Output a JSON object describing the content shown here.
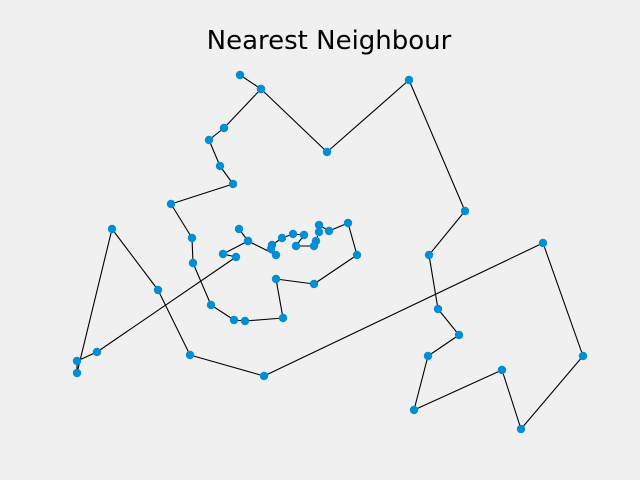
{
  "chart_data": {
    "type": "line",
    "title": "Nearest Neighbour",
    "xlabel": "",
    "ylabel": "",
    "axes_visible": false,
    "grid": false,
    "legend": "none",
    "xlim": [
      48,
      612
    ],
    "ylim": [
      -452,
      -48
    ],
    "colors": {
      "background": "#f0f0f0",
      "line": "#000000",
      "marker": "#008fd5"
    },
    "series": [
      {
        "route": [
          [
            240,
            -75
          ],
          [
            261,
            -89
          ],
          [
            224,
            -128
          ],
          [
            209,
            -140
          ],
          [
            220,
            -166
          ],
          [
            233,
            -184
          ],
          [
            171,
            -204
          ],
          [
            192,
            -238
          ],
          [
            193,
            -263
          ],
          [
            211,
            -305
          ],
          [
            234,
            -320
          ],
          [
            245,
            -321
          ],
          [
            283,
            -318
          ],
          [
            276,
            -279
          ],
          [
            314,
            -284
          ],
          [
            357,
            -255
          ],
          [
            348,
            -223
          ],
          [
            329,
            -231
          ],
          [
            319,
            -225
          ],
          [
            319,
            -232
          ],
          [
            316,
            -241
          ],
          [
            314,
            -246
          ],
          [
            296,
            -246
          ],
          [
            304,
            -235
          ],
          [
            293,
            -234
          ],
          [
            282,
            -238
          ],
          [
            272,
            -245
          ],
          [
            271,
            -249
          ],
          [
            276,
            -255
          ],
          [
            248,
            -241
          ],
          [
            239,
            -229
          ],
          [
            248,
            -241
          ],
          [
            223,
            -254
          ],
          [
            236,
            -257
          ],
          [
            97,
            -352
          ],
          [
            77,
            -361
          ],
          [
            77,
            -373
          ],
          [
            112,
            -229
          ],
          [
            158,
            -290
          ],
          [
            190,
            -355
          ],
          [
            264,
            -376
          ],
          [
            543,
            -243
          ],
          [
            583,
            -356
          ],
          [
            521,
            -429
          ],
          [
            502,
            -370
          ],
          [
            414,
            -410
          ],
          [
            428,
            -356
          ],
          [
            459,
            -335
          ],
          [
            438,
            -309
          ],
          [
            429,
            -255
          ],
          [
            465,
            -211
          ],
          [
            409,
            -80
          ],
          [
            327,
            -152
          ],
          [
            261,
            -89
          ]
        ]
      }
    ]
  }
}
